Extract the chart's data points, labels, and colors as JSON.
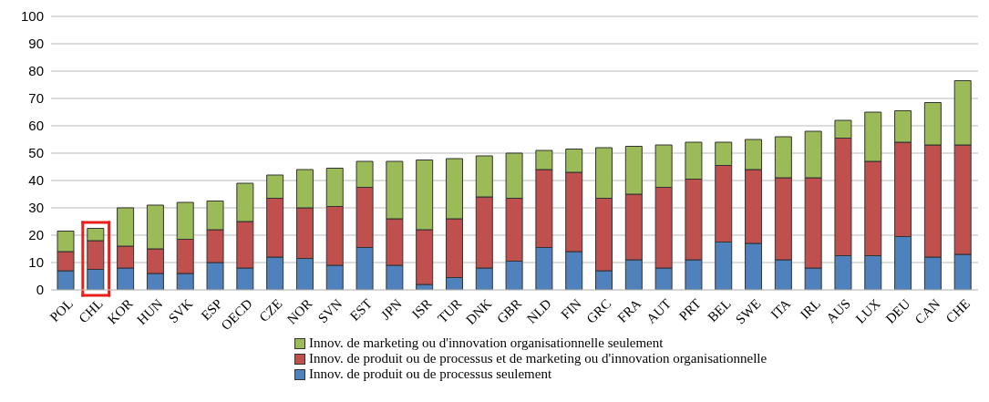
{
  "chart_data": {
    "type": "bar",
    "stacked": true,
    "categories": [
      "POL",
      "CHL",
      "KOR",
      "HUN",
      "SVK",
      "ESP",
      "OECD",
      "CZE",
      "NOR",
      "SVN",
      "EST",
      "JPN",
      "ISR",
      "TUR",
      "DNK",
      "GBR",
      "NLD",
      "FIN",
      "GRC",
      "FRA",
      "AUT",
      "PRT",
      "BEL",
      "SWE",
      "ITA",
      "IRL",
      "AUS",
      "LUX",
      "DEU",
      "CAN",
      "CHE"
    ],
    "series": [
      {
        "name": "Innov. de produit ou de processus seulement",
        "color": "#4f81bd",
        "values": [
          7,
          7.5,
          8,
          6,
          6,
          10,
          8,
          12,
          11.5,
          9,
          15.5,
          9,
          2,
          4.5,
          8,
          10.5,
          15.5,
          14,
          7,
          11,
          8,
          11,
          17.5,
          17,
          11,
          8,
          12.5,
          12.5,
          19.5,
          12,
          13
        ]
      },
      {
        "name": "Innov. de produit ou de processus et de marketing ou d'innovation organisationnelle",
        "color": "#c0504d",
        "values": [
          7,
          10.5,
          8,
          9,
          12.5,
          12,
          17,
          21.5,
          18.5,
          21.5,
          22,
          17,
          20,
          21.5,
          26,
          23,
          28.5,
          29,
          26.5,
          24,
          29.5,
          29.5,
          28,
          27,
          30,
          33,
          43,
          34.5,
          34.5,
          41,
          40
        ]
      },
      {
        "name": "Innov. de marketing ou d'innovation organisationnelle seulement",
        "color": "#9bbb59",
        "values": [
          7.5,
          4.5,
          14,
          16,
          13.5,
          10.5,
          14,
          8.5,
          14,
          14,
          9.5,
          21,
          25.5,
          22,
          15,
          16.5,
          7,
          8.5,
          18.5,
          17.5,
          15.5,
          13.5,
          8.5,
          11,
          15,
          17,
          6.5,
          18,
          11.5,
          15.5,
          23.5
        ]
      }
    ],
    "ylim": [
      0,
      100
    ],
    "yticks": [
      0,
      10,
      20,
      30,
      40,
      50,
      60,
      70,
      80,
      90,
      100
    ],
    "grid": "y",
    "legend": "bottom"
  }
}
